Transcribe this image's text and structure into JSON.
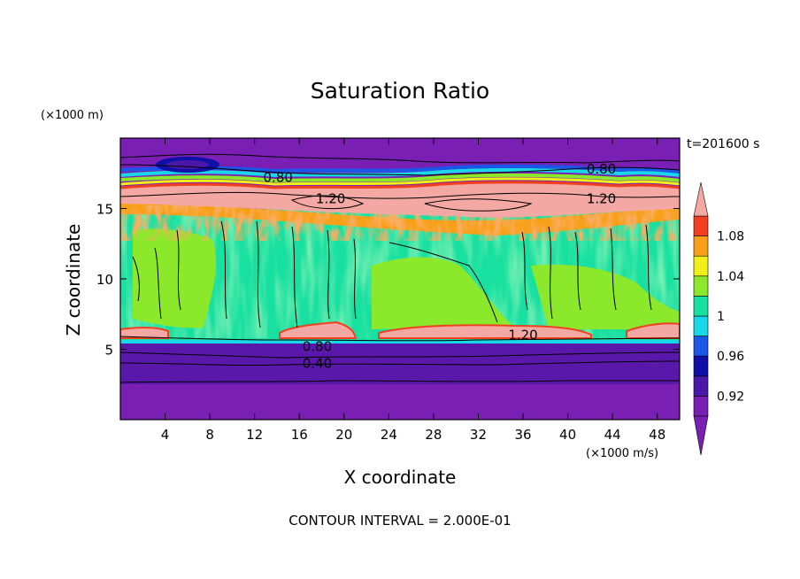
{
  "chart_data": {
    "type": "heatmap",
    "title": "Saturation Ratio",
    "xlabel": "X coordinate",
    "ylabel": "Z coordinate",
    "x_unit": "(×1000 m/s)",
    "y_unit": "(×1000 m)",
    "time_label": "t=201600 s",
    "footer": "CONTOUR INTERVAL = 2.000E-01",
    "xlim": [
      0,
      50
    ],
    "ylim": [
      0,
      20
    ],
    "x_ticks": [
      4,
      8,
      12,
      16,
      20,
      24,
      28,
      32,
      36,
      40,
      44,
      48
    ],
    "y_ticks": [
      5,
      10,
      15
    ],
    "colorbar": {
      "levels": [
        0.9,
        0.92,
        0.94,
        0.96,
        0.98,
        1.0,
        1.02,
        1.04,
        1.06,
        1.08,
        1.1
      ],
      "tick_labels": [
        "0.92",
        "0.96",
        "1",
        "1.04",
        "1.08"
      ],
      "tick_values": [
        0.92,
        0.96,
        1.0,
        1.04,
        1.08
      ],
      "colors": [
        "#7a1fb4",
        "#4a17a8",
        "#1010a8",
        "#1a56e8",
        "#18d8e8",
        "#18e0a0",
        "#8ce82a",
        "#f0f018",
        "#f8a018",
        "#f04020",
        "#f4a8a4"
      ],
      "extend": "both"
    },
    "contour_labels": [
      {
        "text": "0.80",
        "x": 14.1,
        "z": 17.2
      },
      {
        "text": "0.80",
        "x": 43.0,
        "z": 17.8
      },
      {
        "text": "1.20",
        "x": 18.8,
        "z": 15.7
      },
      {
        "text": "1.20",
        "x": 43.0,
        "z": 15.7
      },
      {
        "text": "1.20",
        "x": 36.0,
        "z": 6.0
      },
      {
        "text": "0.80",
        "x": 17.6,
        "z": 5.2
      },
      {
        "text": "0.40",
        "x": 17.6,
        "z": 4.0
      }
    ]
  }
}
